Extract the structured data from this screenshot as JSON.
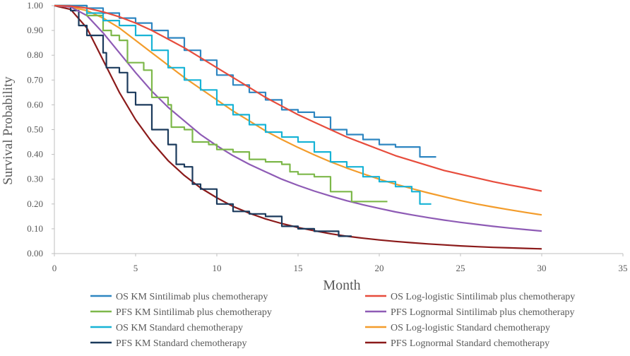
{
  "chart_data": {
    "type": "line",
    "title": "",
    "xlabel": "Month",
    "ylabel": "Survival Probability",
    "xlim": [
      0,
      35
    ],
    "ylim": [
      0,
      1
    ],
    "x_ticks": [
      0,
      5,
      10,
      15,
      20,
      25,
      30,
      35
    ],
    "y_ticks": [
      0,
      0.1,
      0.2,
      0.3,
      0.4,
      0.5,
      0.6,
      0.7,
      0.8,
      0.9,
      1.0
    ],
    "x_tick_labels": [
      "0",
      "5",
      "10",
      "15",
      "20",
      "25",
      "30",
      "35"
    ],
    "y_tick_labels": [
      "0.00",
      "0.10",
      "0.20",
      "0.30",
      "0.40",
      "0.50",
      "0.60",
      "0.70",
      "0.80",
      "0.90",
      "1.00"
    ],
    "legend_position": "bottom",
    "series": [
      {
        "name": "OS KM Sintilimab plus chemotherapy",
        "kind": "step",
        "color": "#2E86C1",
        "points": [
          [
            0,
            1.0
          ],
          [
            1,
            1.0
          ],
          [
            2,
            0.99
          ],
          [
            3,
            0.97
          ],
          [
            4,
            0.95
          ],
          [
            5,
            0.93
          ],
          [
            6,
            0.9
          ],
          [
            7,
            0.87
          ],
          [
            8,
            0.82
          ],
          [
            9,
            0.78
          ],
          [
            10,
            0.72
          ],
          [
            11,
            0.68
          ],
          [
            12,
            0.65
          ],
          [
            13,
            0.62
          ],
          [
            14,
            0.58
          ],
          [
            15,
            0.57
          ],
          [
            16,
            0.55
          ],
          [
            17,
            0.5
          ],
          [
            18,
            0.48
          ],
          [
            19,
            0.46
          ],
          [
            20,
            0.44
          ],
          [
            21,
            0.43
          ],
          [
            22,
            0.43
          ],
          [
            22.5,
            0.39
          ],
          [
            23.5,
            0.39
          ]
        ]
      },
      {
        "name": "OS Log-logistic Sintilimab plus chemotherapy",
        "kind": "curve",
        "color": "#E74C3C",
        "points": [
          [
            0,
            1.0
          ],
          [
            1,
            0.998
          ],
          [
            2,
            0.99
          ],
          [
            3,
            0.975
          ],
          [
            4,
            0.955
          ],
          [
            5,
            0.93
          ],
          [
            6,
            0.9
          ],
          [
            7,
            0.865
          ],
          [
            8,
            0.83
          ],
          [
            9,
            0.79
          ],
          [
            10,
            0.75
          ],
          [
            11,
            0.71
          ],
          [
            12,
            0.67
          ],
          [
            13,
            0.63
          ],
          [
            14,
            0.595
          ],
          [
            15,
            0.56
          ],
          [
            16,
            0.53
          ],
          [
            17,
            0.5
          ],
          [
            18,
            0.47
          ],
          [
            19,
            0.445
          ],
          [
            20,
            0.42
          ],
          [
            21,
            0.395
          ],
          [
            22,
            0.375
          ],
          [
            23,
            0.355
          ],
          [
            24,
            0.335
          ],
          [
            25,
            0.32
          ],
          [
            26,
            0.305
          ],
          [
            27,
            0.29
          ],
          [
            28,
            0.277
          ],
          [
            29,
            0.265
          ],
          [
            30,
            0.252
          ]
        ]
      },
      {
        "name": "PFS KM Sintilimab plus chemotherapy",
        "kind": "step",
        "color": "#7DB84A",
        "points": [
          [
            0,
            1.0
          ],
          [
            1,
            1.0
          ],
          [
            2,
            0.96
          ],
          [
            3,
            0.9
          ],
          [
            3.5,
            0.88
          ],
          [
            4,
            0.86
          ],
          [
            4.5,
            0.77
          ],
          [
            5,
            0.77
          ],
          [
            5.5,
            0.74
          ],
          [
            6,
            0.63
          ],
          [
            7,
            0.6
          ],
          [
            7.2,
            0.51
          ],
          [
            8,
            0.5
          ],
          [
            8.5,
            0.45
          ],
          [
            9.5,
            0.44
          ],
          [
            10,
            0.42
          ],
          [
            11,
            0.41
          ],
          [
            12,
            0.38
          ],
          [
            13,
            0.37
          ],
          [
            14,
            0.36
          ],
          [
            14.5,
            0.33
          ],
          [
            15,
            0.32
          ],
          [
            16,
            0.31
          ],
          [
            17,
            0.3
          ],
          [
            17,
            0.25
          ],
          [
            18,
            0.25
          ],
          [
            18.3,
            0.21
          ],
          [
            20.5,
            0.21
          ]
        ]
      },
      {
        "name": "PFS Lognormal Sintilimab plus chemotherapy",
        "kind": "curve",
        "color": "#8E5BB5",
        "points": [
          [
            0,
            1.0
          ],
          [
            1,
            0.995
          ],
          [
            2,
            0.96
          ],
          [
            3,
            0.89
          ],
          [
            4,
            0.81
          ],
          [
            5,
            0.73
          ],
          [
            6,
            0.655
          ],
          [
            7,
            0.59
          ],
          [
            8,
            0.535
          ],
          [
            9,
            0.48
          ],
          [
            10,
            0.435
          ],
          [
            11,
            0.395
          ],
          [
            12,
            0.36
          ],
          [
            13,
            0.33
          ],
          [
            14,
            0.3
          ],
          [
            15,
            0.275
          ],
          [
            16,
            0.252
          ],
          [
            17,
            0.232
          ],
          [
            18,
            0.213
          ],
          [
            19,
            0.197
          ],
          [
            20,
            0.182
          ],
          [
            21,
            0.168
          ],
          [
            22,
            0.156
          ],
          [
            23,
            0.145
          ],
          [
            24,
            0.135
          ],
          [
            25,
            0.126
          ],
          [
            26,
            0.118
          ],
          [
            27,
            0.11
          ],
          [
            28,
            0.103
          ],
          [
            29,
            0.097
          ],
          [
            30,
            0.091
          ]
        ]
      },
      {
        "name": "OS KM Standard chemotherapy",
        "kind": "step",
        "color": "#17B3D6",
        "points": [
          [
            0,
            1.0
          ],
          [
            1,
            1.0
          ],
          [
            2,
            0.97
          ],
          [
            3,
            0.94
          ],
          [
            4,
            0.92
          ],
          [
            5,
            0.88
          ],
          [
            6,
            0.82
          ],
          [
            7,
            0.75
          ],
          [
            8,
            0.7
          ],
          [
            9,
            0.66
          ],
          [
            10,
            0.6
          ],
          [
            11,
            0.56
          ],
          [
            12,
            0.52
          ],
          [
            13,
            0.49
          ],
          [
            14,
            0.47
          ],
          [
            15,
            0.45
          ],
          [
            16,
            0.41
          ],
          [
            17,
            0.37
          ],
          [
            18,
            0.35
          ],
          [
            19,
            0.31
          ],
          [
            20,
            0.29
          ],
          [
            21,
            0.27
          ],
          [
            22,
            0.25
          ],
          [
            22.5,
            0.2
          ],
          [
            23.2,
            0.2
          ]
        ]
      },
      {
        "name": "OS Log-logistic Standard chemotherapy",
        "kind": "curve",
        "color": "#F39C2B",
        "points": [
          [
            0,
            1.0
          ],
          [
            1,
            0.995
          ],
          [
            2,
            0.98
          ],
          [
            3,
            0.95
          ],
          [
            4,
            0.91
          ],
          [
            5,
            0.86
          ],
          [
            6,
            0.81
          ],
          [
            7,
            0.76
          ],
          [
            8,
            0.71
          ],
          [
            9,
            0.665
          ],
          [
            10,
            0.62
          ],
          [
            11,
            0.575
          ],
          [
            12,
            0.535
          ],
          [
            13,
            0.495
          ],
          [
            14,
            0.46
          ],
          [
            15,
            0.428
          ],
          [
            16,
            0.398
          ],
          [
            17,
            0.37
          ],
          [
            18,
            0.345
          ],
          [
            19,
            0.322
          ],
          [
            20,
            0.3
          ],
          [
            21,
            0.28
          ],
          [
            22,
            0.262
          ],
          [
            23,
            0.245
          ],
          [
            24,
            0.229
          ],
          [
            25,
            0.214
          ],
          [
            26,
            0.2
          ],
          [
            27,
            0.188
          ],
          [
            28,
            0.177
          ],
          [
            29,
            0.166
          ],
          [
            30,
            0.156
          ]
        ]
      },
      {
        "name": "PFS KM Standard chemotherapy",
        "kind": "step",
        "color": "#1B3A5C",
        "points": [
          [
            0,
            1.0
          ],
          [
            1,
            0.98
          ],
          [
            1.5,
            0.92
          ],
          [
            2,
            0.88
          ],
          [
            3,
            0.81
          ],
          [
            3.2,
            0.75
          ],
          [
            4,
            0.73
          ],
          [
            4.5,
            0.65
          ],
          [
            5,
            0.6
          ],
          [
            6,
            0.5
          ],
          [
            7,
            0.44
          ],
          [
            7.5,
            0.36
          ],
          [
            8,
            0.35
          ],
          [
            8.5,
            0.28
          ],
          [
            9,
            0.26
          ],
          [
            10,
            0.2
          ],
          [
            11,
            0.17
          ],
          [
            12,
            0.16
          ],
          [
            13,
            0.15
          ],
          [
            14,
            0.11
          ],
          [
            15,
            0.1
          ],
          [
            16,
            0.09
          ],
          [
            17,
            0.09
          ],
          [
            17.5,
            0.07
          ],
          [
            18.3,
            0.07
          ]
        ]
      },
      {
        "name": "PFS Lognormal Standard chemotherapy",
        "kind": "curve",
        "color": "#8B1A1A",
        "points": [
          [
            0,
            1.0
          ],
          [
            1,
            0.985
          ],
          [
            2,
            0.91
          ],
          [
            3,
            0.78
          ],
          [
            4,
            0.65
          ],
          [
            5,
            0.54
          ],
          [
            6,
            0.45
          ],
          [
            7,
            0.375
          ],
          [
            8,
            0.315
          ],
          [
            9,
            0.265
          ],
          [
            10,
            0.225
          ],
          [
            11,
            0.19
          ],
          [
            12,
            0.163
          ],
          [
            13,
            0.14
          ],
          [
            14,
            0.121
          ],
          [
            15,
            0.105
          ],
          [
            16,
            0.092
          ],
          [
            17,
            0.08
          ],
          [
            18,
            0.07
          ],
          [
            19,
            0.062
          ],
          [
            20,
            0.055
          ],
          [
            21,
            0.049
          ],
          [
            22,
            0.044
          ],
          [
            23,
            0.039
          ],
          [
            24,
            0.035
          ],
          [
            25,
            0.031
          ],
          [
            26,
            0.028
          ],
          [
            27,
            0.025
          ],
          [
            28,
            0.023
          ],
          [
            29,
            0.021
          ],
          [
            30,
            0.019
          ]
        ]
      }
    ]
  }
}
